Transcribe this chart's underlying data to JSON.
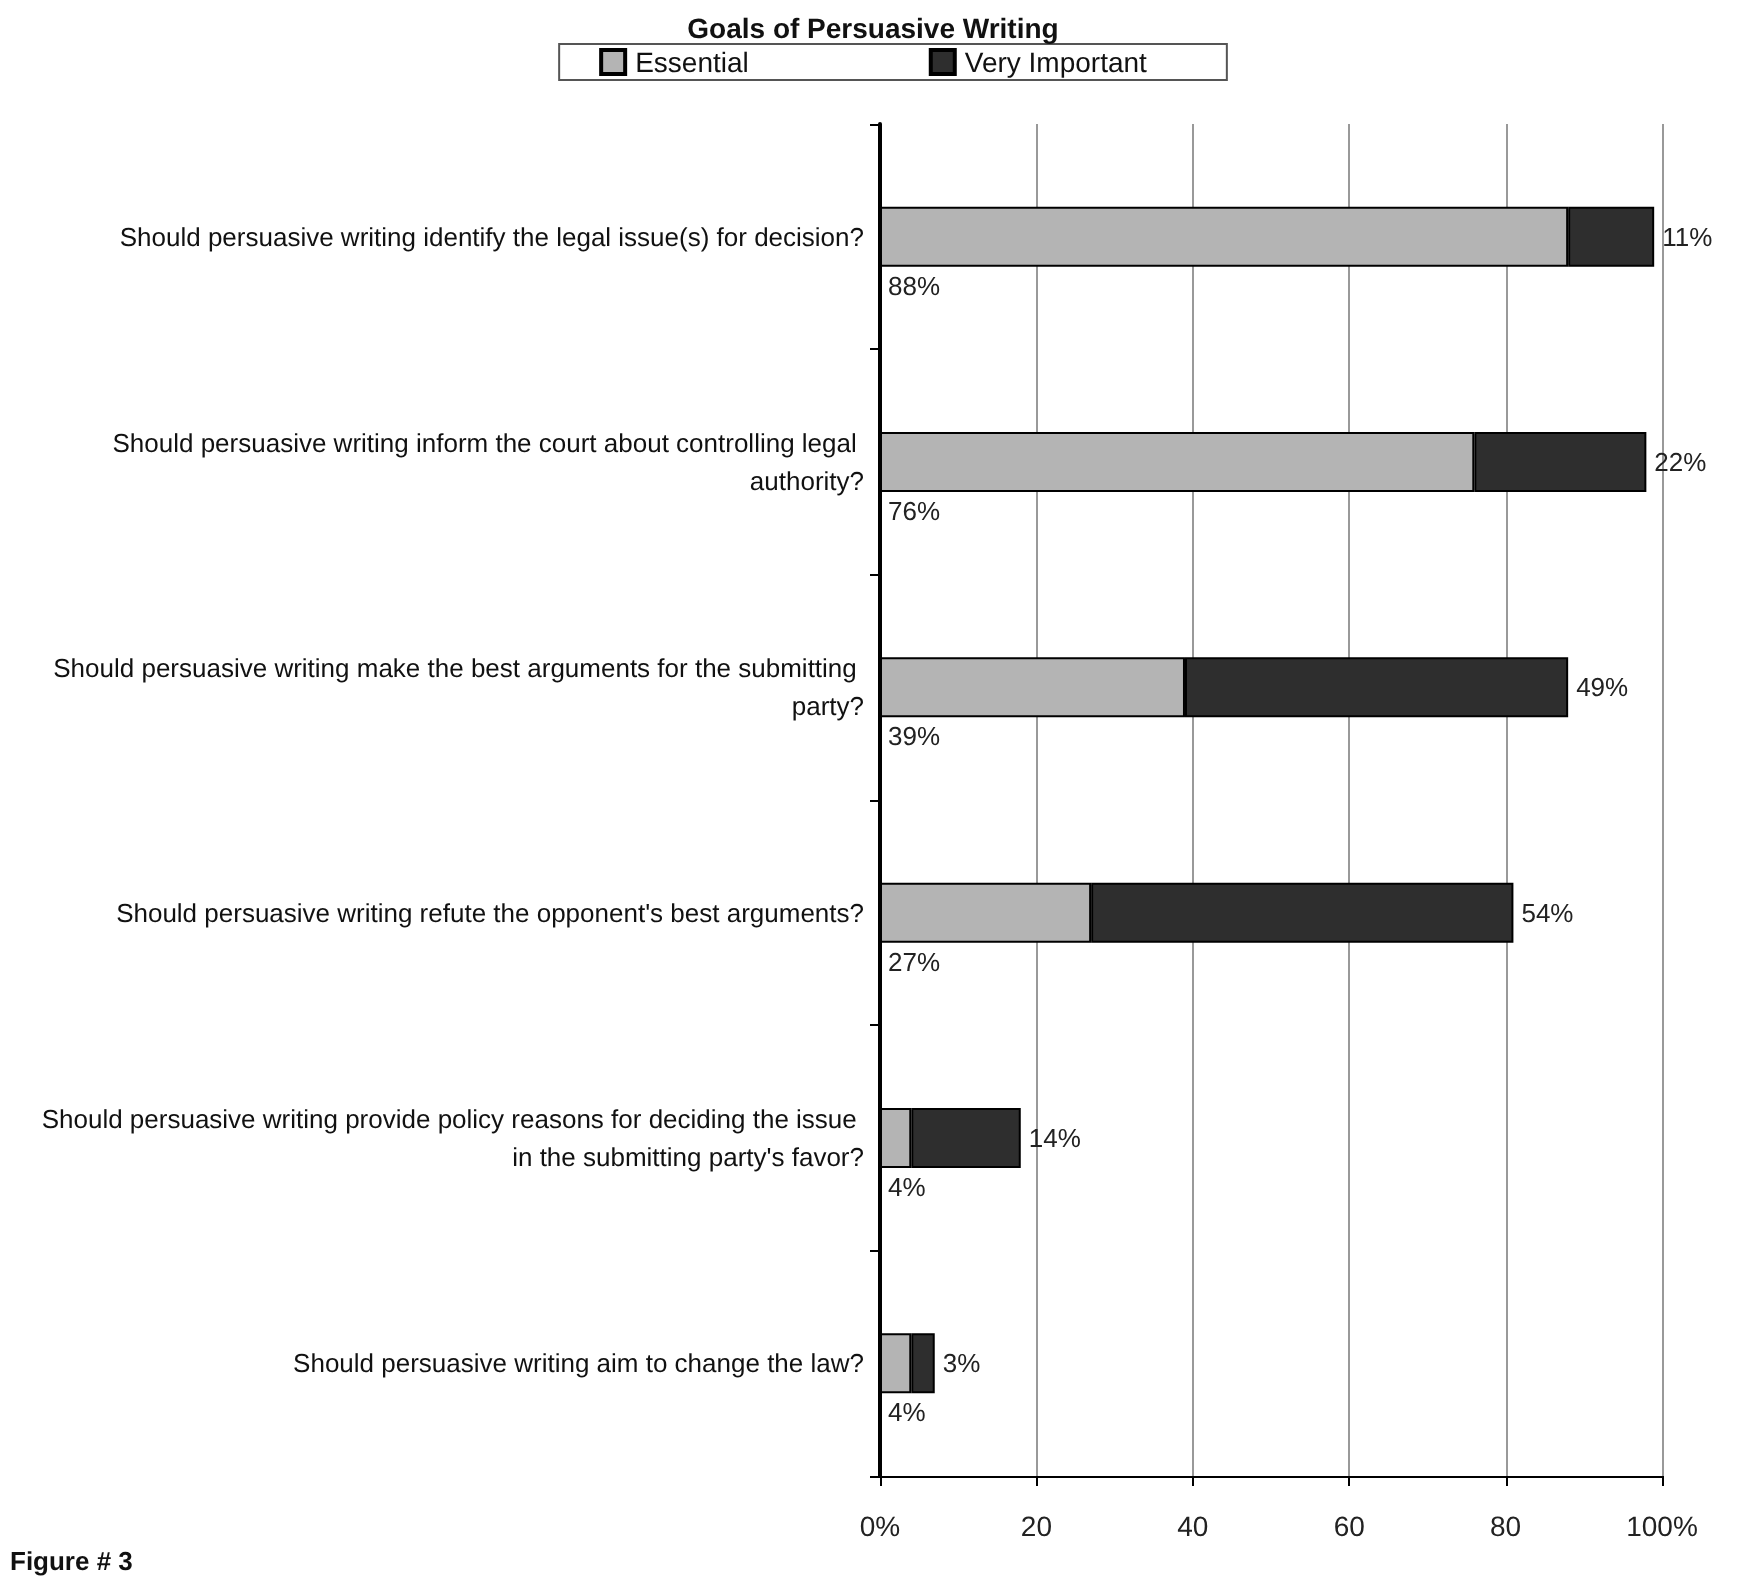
{
  "chart_data": {
    "type": "bar",
    "orientation": "horizontal",
    "stacked": true,
    "title": "Goals of Persuasive Writing",
    "categories": [
      "Should persuasive writing identify the legal issue(s) for decision?",
      "Should persuasive writing inform the court about controlling legal authority?",
      "Should persuasive writing make the best arguments for the submitting party?",
      "Should persuasive writing refute the opponent's best arguments?",
      "Should persuasive writing provide policy reasons for deciding the issue in the submitting party's favor?",
      "Should persuasive writing aim to change the law?"
    ],
    "series": [
      {
        "name": "Essential",
        "color": "#b4b4b4",
        "values": [
          88,
          76,
          39,
          27,
          4,
          4
        ],
        "value_labels": [
          "88%",
          "76%",
          "39%",
          "27%",
          "4%",
          "4%"
        ]
      },
      {
        "name": "Very Important",
        "color": "#2e2e2e",
        "values": [
          11,
          22,
          49,
          54,
          14,
          3
        ],
        "value_labels": [
          "11%",
          "22%",
          "49%",
          "54%",
          "14%",
          "3%"
        ]
      }
    ],
    "xlim": [
      0,
      100
    ],
    "xticks": [
      {
        "value": 0,
        "label": "0%"
      },
      20,
      40,
      60,
      80,
      {
        "value": 100,
        "label": "100%"
      }
    ],
    "grid": "x",
    "legend": "top",
    "annotations": [
      "Figure # 3"
    ]
  }
}
